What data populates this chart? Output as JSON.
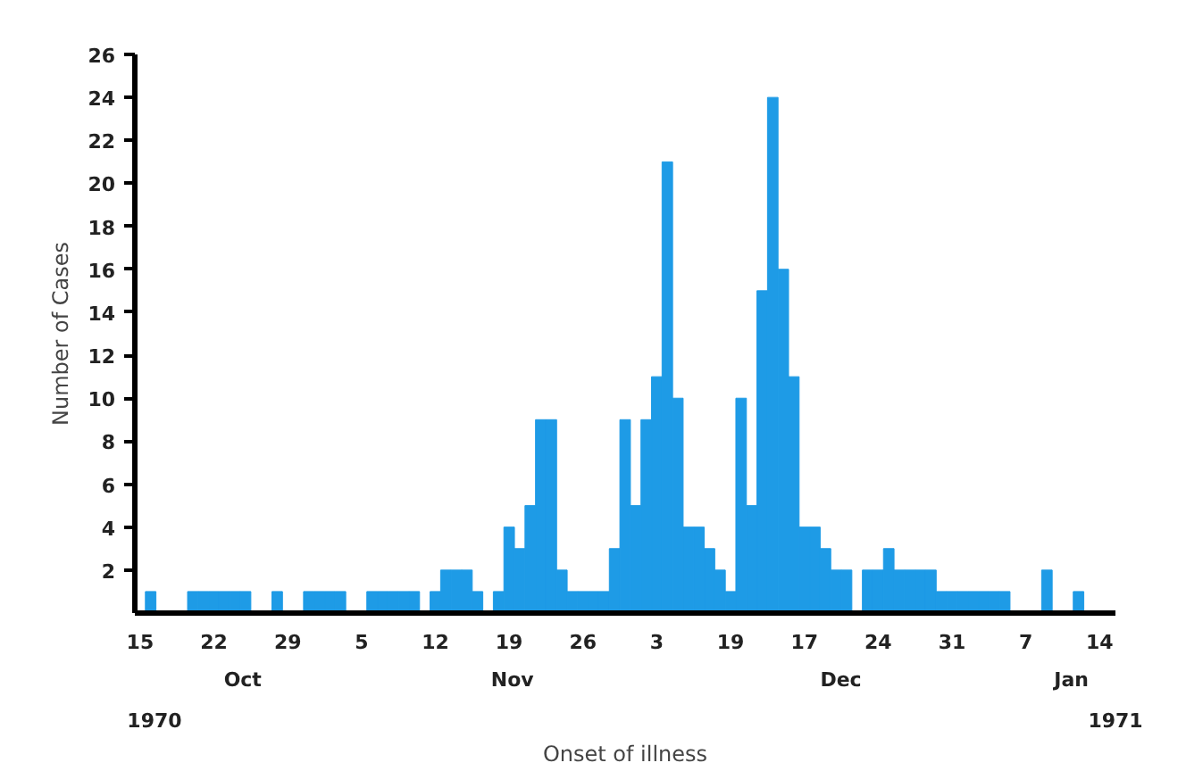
{
  "chart_data": {
    "type": "bar",
    "ylabel": "Number of Cases",
    "xlabel": "Onset of illness",
    "x": [
      "1970-10-15",
      "1970-10-16",
      "1970-10-17",
      "1970-10-18",
      "1970-10-19",
      "1970-10-20",
      "1970-10-21",
      "1970-10-22",
      "1970-10-23",
      "1970-10-24",
      "1970-10-25",
      "1970-10-26",
      "1970-10-27",
      "1970-10-28",
      "1970-10-29",
      "1970-10-30",
      "1970-10-31",
      "1970-11-01",
      "1970-11-02",
      "1970-11-03",
      "1970-11-04",
      "1970-11-05",
      "1970-11-06",
      "1970-11-07",
      "1970-11-08",
      "1970-11-09",
      "1970-11-10",
      "1970-11-11",
      "1970-11-12",
      "1970-11-13",
      "1970-11-14",
      "1970-11-15",
      "1970-11-16",
      "1970-11-17",
      "1970-11-18",
      "1970-11-19",
      "1970-11-20",
      "1970-11-21",
      "1970-11-22",
      "1970-11-23",
      "1970-11-24",
      "1970-11-25",
      "1970-11-26",
      "1970-11-27",
      "1970-11-28",
      "1970-11-29",
      "1970-11-30",
      "1970-12-01",
      "1970-12-02",
      "1970-12-03",
      "1970-12-04",
      "1970-12-05",
      "1970-12-06",
      "1970-12-07",
      "1970-12-08",
      "1970-12-09",
      "1970-12-10",
      "1970-12-11",
      "1970-12-12",
      "1970-12-13",
      "1970-12-14",
      "1970-12-15",
      "1970-12-16",
      "1970-12-17",
      "1970-12-18",
      "1970-12-19",
      "1970-12-20",
      "1970-12-21",
      "1970-12-22",
      "1970-12-23",
      "1970-12-24",
      "1970-12-25",
      "1970-12-26",
      "1970-12-27",
      "1970-12-28",
      "1970-12-29",
      "1970-12-30",
      "1970-12-31",
      "1971-01-01",
      "1971-01-02",
      "1971-01-03",
      "1971-01-04",
      "1971-01-05",
      "1971-01-06",
      "1971-01-07",
      "1971-01-08",
      "1971-01-09",
      "1971-01-10",
      "1971-01-11",
      "1971-01-12",
      "1971-01-13",
      "1971-01-14"
    ],
    "values": [
      0,
      1,
      0,
      0,
      0,
      1,
      1,
      1,
      1,
      1,
      1,
      0,
      0,
      1,
      0,
      0,
      1,
      1,
      1,
      1,
      0,
      0,
      1,
      1,
      1,
      1,
      1,
      0,
      1,
      2,
      2,
      2,
      1,
      0,
      1,
      4,
      3,
      5,
      9,
      9,
      2,
      1,
      1,
      1,
      1,
      3,
      9,
      5,
      9,
      11,
      21,
      10,
      4,
      4,
      3,
      2,
      1,
      10,
      5,
      15,
      24,
      16,
      11,
      4,
      4,
      3,
      2,
      2,
      0,
      2,
      2,
      3,
      2,
      2,
      2,
      2,
      1,
      1,
      1,
      1,
      1,
      1,
      1,
      0,
      0,
      0,
      2,
      0,
      0,
      1,
      0,
      0
    ],
    "color": "#1e9be6",
    "xlim": [
      "1970-10-14T12:00",
      "1971-01-15T12:00"
    ],
    "ylim": [
      0,
      26
    ],
    "xticks": [
      {
        "value": "1970-10-15",
        "label": "15"
      },
      {
        "value": "1970-10-22",
        "label": "22"
      },
      {
        "value": "1970-10-29",
        "label": "29"
      },
      {
        "value": "1970-11-05",
        "label": "5"
      },
      {
        "value": "1970-11-12",
        "label": "12"
      },
      {
        "value": "1970-11-19",
        "label": "19"
      },
      {
        "value": "1970-11-26",
        "label": "26"
      },
      {
        "value": "1970-12-03",
        "label": "3"
      },
      {
        "value": "1970-12-10",
        "label": "19"
      },
      {
        "value": "1970-12-17",
        "label": "17"
      },
      {
        "value": "1970-12-24",
        "label": "24"
      },
      {
        "value": "1970-12-31",
        "label": "31"
      },
      {
        "value": "1971-01-07",
        "label": "7"
      },
      {
        "value": "1971-01-14",
        "label": "14"
      }
    ],
    "yticks": [
      2,
      4,
      6,
      8,
      10,
      12,
      14,
      16,
      18,
      20,
      22,
      24,
      26
    ],
    "annotations": [
      "Oct",
      "Nov",
      "Dec",
      "Jan",
      "1970",
      "1971"
    ],
    "grid": false
  }
}
